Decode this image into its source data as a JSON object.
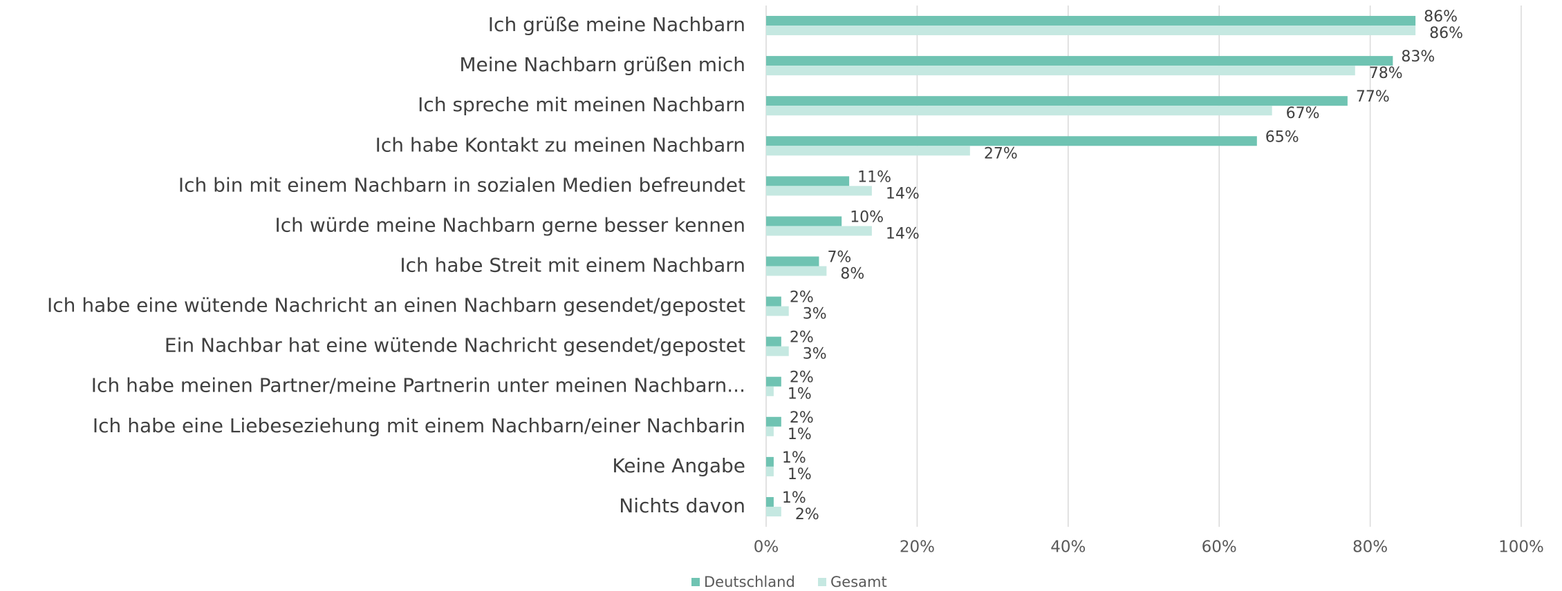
{
  "chart_data": {
    "type": "bar",
    "orientation": "horizontal",
    "categories": [
      "Ich grüße meine Nachbarn",
      "Meine Nachbarn grüßen mich",
      "Ich spreche mit meinen Nachbarn",
      "Ich habe Kontakt zu meinen Nachbarn",
      "Ich bin mit einem Nachbarn in sozialen Medien befreundet",
      "Ich würde meine Nachbarn gerne besser kennen",
      "Ich habe Streit mit einem Nachbarn",
      "Ich habe eine wütende Nachricht an einen Nachbarn gesendet/gepostet",
      "Ein Nachbar hat eine wütende Nachricht gesendet/gepostet",
      "Ich habe meinen Partner/meine Partnerin unter meinen Nachbarn...",
      "Ich habe eine Liebeseziehung mit einem Nachbarn/einer Nachbarin",
      "Keine Angabe",
      "Nichts davon"
    ],
    "series": [
      {
        "name": "Deutschland",
        "color": "#6fc3b2",
        "values": [
          86,
          83,
          77,
          65,
          11,
          10,
          7,
          2,
          2,
          2,
          2,
          1,
          1
        ],
        "value_labels": [
          "86%",
          "83%",
          "77%",
          "65%",
          "11%",
          "10%",
          "7%",
          "2%",
          "2%",
          "2%",
          "2%",
          "1%",
          "1%"
        ]
      },
      {
        "name": "Gesamt",
        "color": "#c5e8e1",
        "values": [
          86,
          78,
          67,
          27,
          14,
          14,
          8,
          3,
          3,
          1,
          1,
          1,
          2
        ],
        "value_labels": [
          "86%",
          "78%",
          "67%",
          "27%",
          "14%",
          "14%",
          "8%",
          "3%",
          "3%",
          "1%",
          "1%",
          "1%",
          "2%"
        ]
      }
    ],
    "xlim": [
      0,
      100
    ],
    "xticks": [
      {
        "value": 0,
        "label": "0%"
      },
      {
        "value": 20,
        "label": "20%"
      },
      {
        "value": 40,
        "label": "40%"
      },
      {
        "value": 60,
        "label": "60%"
      },
      {
        "value": 80,
        "label": "80%"
      },
      {
        "value": 100,
        "label": "100%"
      }
    ],
    "grid": true,
    "legend": "bottom"
  }
}
